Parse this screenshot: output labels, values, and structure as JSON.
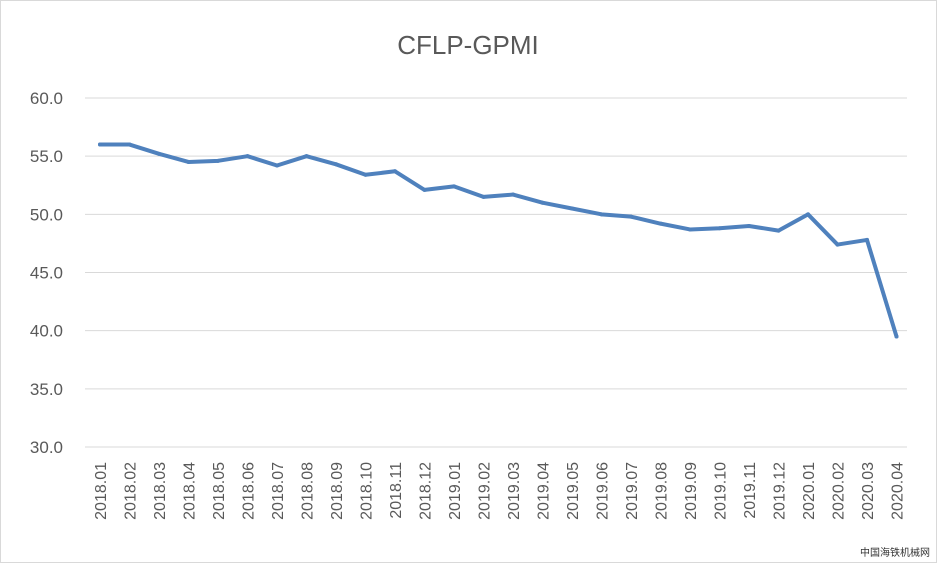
{
  "chart_data": {
    "type": "line",
    "title": "CFLP-GPMI",
    "xlabel": "",
    "ylabel": "",
    "ylim": [
      30,
      60
    ],
    "yticks": [
      "60.0",
      "55.0",
      "50.0",
      "45.0",
      "40.0",
      "35.0",
      "30.0"
    ],
    "grid": true,
    "categories": [
      "2018.01",
      "2018.02",
      "2018.03",
      "2018.04",
      "2018.05",
      "2018.06",
      "2018.07",
      "2018.08",
      "2018.09",
      "2018.10",
      "2018.11",
      "2018.12",
      "2019.01",
      "2019.02",
      "2019.03",
      "2019.04",
      "2019.05",
      "2019.06",
      "2019.07",
      "2019.08",
      "2019.09",
      "2019.10",
      "2019.11",
      "2019.12",
      "2020.01",
      "2020.02",
      "2020.03",
      "2020.04"
    ],
    "series": [
      {
        "values": [
          56.0,
          56.0,
          55.2,
          54.5,
          54.6,
          55.0,
          54.2,
          55.0,
          54.3,
          53.4,
          53.7,
          52.1,
          52.4,
          51.5,
          51.7,
          51.0,
          50.5,
          50.0,
          49.8,
          49.2,
          48.7,
          48.8,
          49.0,
          48.6,
          50.0,
          47.4,
          47.8,
          39.5
        ],
        "color": "#4f81bd"
      }
    ]
  },
  "watermark": "中国海铁机械网"
}
